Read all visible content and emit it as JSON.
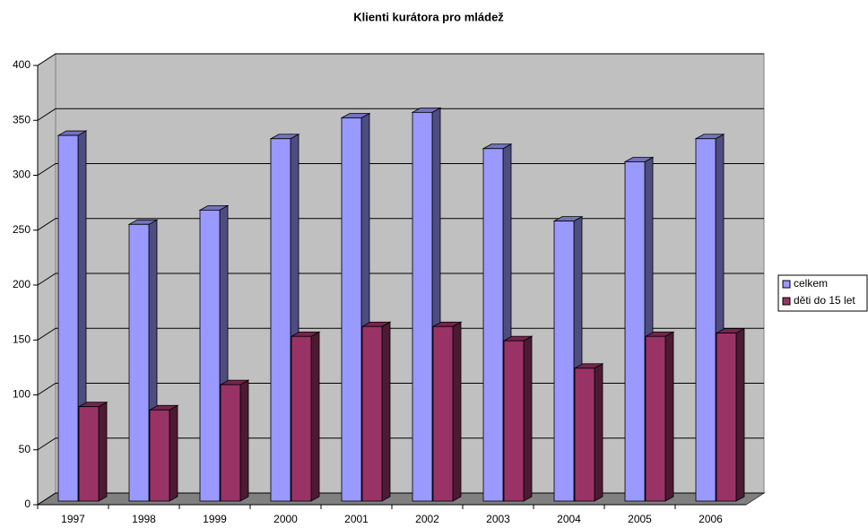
{
  "chart_data": {
    "type": "bar3d",
    "title": "Klienti kurátora pro mládež",
    "categories": [
      "1997",
      "1998",
      "1999",
      "2000",
      "2001",
      "2002",
      "2003",
      "2004",
      "2005",
      "2006"
    ],
    "series": [
      {
        "name": "celkem",
        "color": "#9999ff",
        "values": [
          333,
          252,
          265,
          330,
          349,
          354,
          321,
          255,
          309,
          330
        ]
      },
      {
        "name": "děti do 15 let",
        "color": "#993366",
        "values": [
          86,
          83,
          106,
          150,
          159,
          159,
          146,
          121,
          150,
          153
        ]
      }
    ],
    "ylim": [
      0,
      400
    ],
    "yticks": [
      0,
      50,
      100,
      150,
      200,
      250,
      300,
      350,
      400
    ],
    "grid": true,
    "legend": "right"
  }
}
